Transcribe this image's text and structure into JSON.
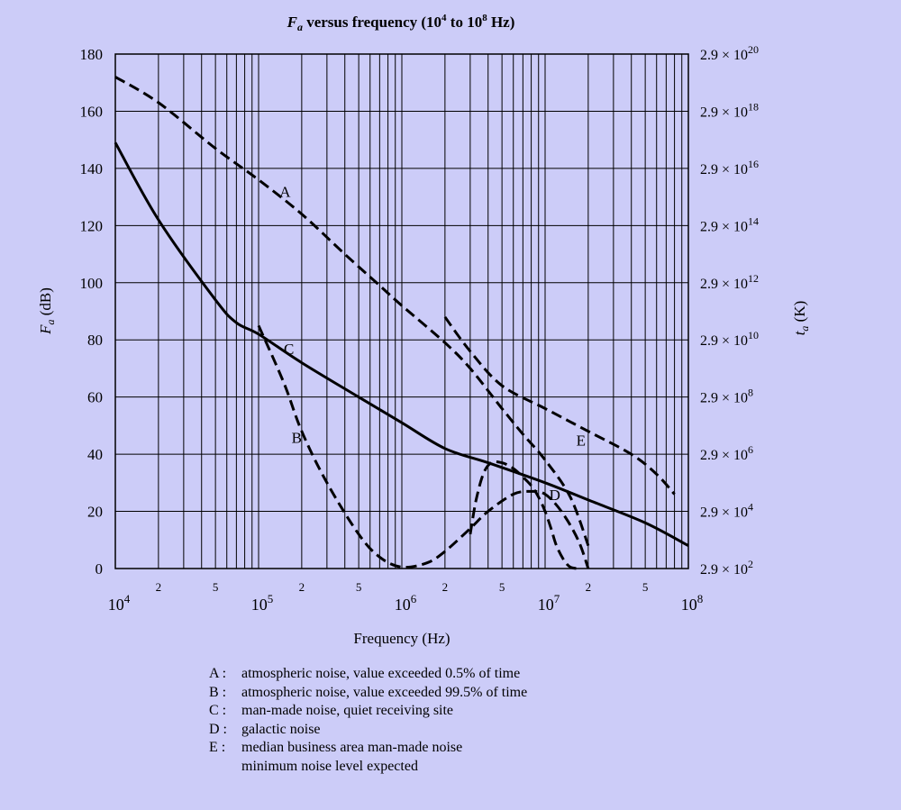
{
  "chart_data": {
    "type": "line",
    "title_prefix": "F",
    "title_sub": "a",
    "title_rest": " versus frequency (10",
    "title_exp1": "4",
    "title_mid": " to 10",
    "title_exp2": "8",
    "title_end": " Hz)",
    "xlabel": "Frequency (Hz)",
    "ylabel_main": "F",
    "ylabel_sub": "a",
    "ylabel_unit": " (dB)",
    "y2label_main": "t",
    "y2label_sub": "a",
    "y2label_unit": " (K)",
    "x_scale": "log",
    "xlim": [
      10000,
      100000000
    ],
    "ylim": [
      0,
      180
    ],
    "y_ticks": [
      0,
      20,
      40,
      60,
      80,
      100,
      120,
      140,
      160,
      180
    ],
    "x_decade_labels": [
      {
        "value": 10000,
        "base": "10",
        "exp": "4"
      },
      {
        "value": 100000,
        "base": "10",
        "exp": "5"
      },
      {
        "value": 1000000,
        "base": "10",
        "exp": "6"
      },
      {
        "value": 10000000,
        "base": "10",
        "exp": "7"
      },
      {
        "value": 100000000,
        "base": "10",
        "exp": "8"
      }
    ],
    "x_minor_labels": [
      "2",
      "5"
    ],
    "y2_ticks": [
      {
        "y": 0,
        "mantissa": "2.9 × 10",
        "exp": "2"
      },
      {
        "y": 20,
        "mantissa": "2.9 × 10",
        "exp": "4"
      },
      {
        "y": 40,
        "mantissa": "2.9 × 10",
        "exp": "6"
      },
      {
        "y": 60,
        "mantissa": "2.9 × 10",
        "exp": "8"
      },
      {
        "y": 80,
        "mantissa": "2.9 × 10",
        "exp": "10"
      },
      {
        "y": 100,
        "mantissa": "2.9 × 10",
        "exp": "12"
      },
      {
        "y": 120,
        "mantissa": "2.9 × 10",
        "exp": "14"
      },
      {
        "y": 140,
        "mantissa": "2.9 × 10",
        "exp": "16"
      },
      {
        "y": 160,
        "mantissa": "2.9 × 10",
        "exp": "18"
      },
      {
        "y": 180,
        "mantissa": "2.9 × 10",
        "exp": "20"
      }
    ],
    "series": [
      {
        "name": "A",
        "style": "dashed",
        "x": [
          10000,
          20000,
          50000,
          100000,
          200000,
          400000,
          700000,
          1000000,
          2000000,
          3000000,
          5000000,
          7000000,
          10000000,
          15000000,
          20000000
        ],
        "y": [
          172,
          163,
          147,
          136,
          124,
          110,
          99,
          92,
          79,
          70,
          56,
          47,
          38,
          25,
          8
        ],
        "label_at": {
          "x": 140000,
          "y": 130
        }
      },
      {
        "name": "B",
        "style": "dashed",
        "x": [
          100000,
          150000,
          200000,
          300000,
          500000,
          700000,
          1000000,
          1500000,
          2000000,
          3000000,
          4000000,
          6000000,
          8000000,
          10000000,
          13000000,
          17000000,
          20000000
        ],
        "y": [
          85,
          65,
          48,
          30,
          12,
          4,
          0.5,
          2,
          6,
          14,
          20,
          26,
          27,
          26,
          20,
          10,
          0
        ],
        "label_at": {
          "x": 170000,
          "y": 44
        }
      },
      {
        "name": "C",
        "style": "solid",
        "x": [
          10000,
          20000,
          50000,
          70000,
          100000,
          200000,
          500000,
          1000000,
          2000000,
          4000000,
          10000000,
          20000000,
          50000000,
          100000000
        ],
        "y": [
          149,
          122,
          94,
          86,
          82,
          72,
          60,
          51,
          42,
          37,
          30,
          24,
          16,
          8
        ],
        "label_at": {
          "x": 150000,
          "y": 75
        }
      },
      {
        "name": "D",
        "style": "dashed",
        "x": [
          3000000,
          3300000,
          3700000,
          4200000,
          5000000,
          6000000,
          7000000,
          8000000,
          9000000,
          10000000,
          11000000,
          12000000,
          13500000,
          15000000,
          17000000
        ],
        "y": [
          12,
          24,
          33,
          37,
          37,
          35,
          32,
          29,
          25,
          20,
          14,
          8,
          3,
          0.5,
          0
        ],
        "label_at": {
          "x": 10700000,
          "y": 24
        }
      },
      {
        "name": "E",
        "style": "dashed",
        "x": [
          2000000,
          3000000,
          5000000,
          10000000,
          20000000,
          40000000,
          60000000,
          80000000
        ],
        "y": [
          88,
          76,
          64,
          56,
          48,
          40,
          33,
          26
        ],
        "label_at": {
          "x": 16500000,
          "y": 43
        }
      }
    ],
    "legend": [
      {
        "key": "A :",
        "text": "atmospheric noise, value exceeded 0.5% of time"
      },
      {
        "key": "B :",
        "text": "atmospheric noise, value exceeded 99.5% of time"
      },
      {
        "key": "C :",
        "text": "man-made noise, quiet receiving site"
      },
      {
        "key": "D :",
        "text": "galactic noise"
      },
      {
        "key": "E :",
        "text": "median business area man-made noise"
      },
      {
        "key": "",
        "text": "minimum noise level expected"
      }
    ]
  }
}
